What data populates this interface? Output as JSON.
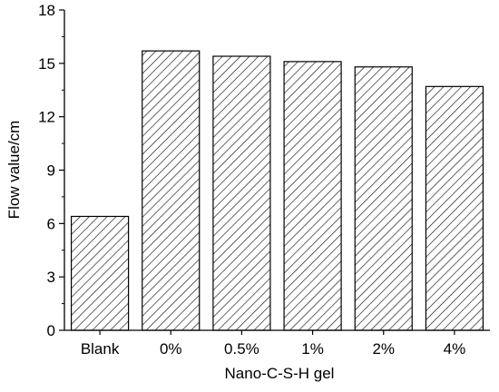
{
  "chart_data": {
    "type": "bar",
    "title": "",
    "xlabel": "Nano-C-S-H gel",
    "ylabel": "Flow value/cm",
    "categories": [
      "Blank",
      "0%",
      "0.5%",
      "1%",
      "2%",
      "4%"
    ],
    "values": [
      6.4,
      15.7,
      15.4,
      15.1,
      14.8,
      13.7
    ],
    "ylim": [
      0,
      18
    ],
    "yticks": [
      "0",
      "3",
      "6",
      "9",
      "12",
      "15",
      "18"
    ],
    "bar_fill": "hatched",
    "bar_edge_color": "#000000",
    "grid": false,
    "legend": "none"
  }
}
